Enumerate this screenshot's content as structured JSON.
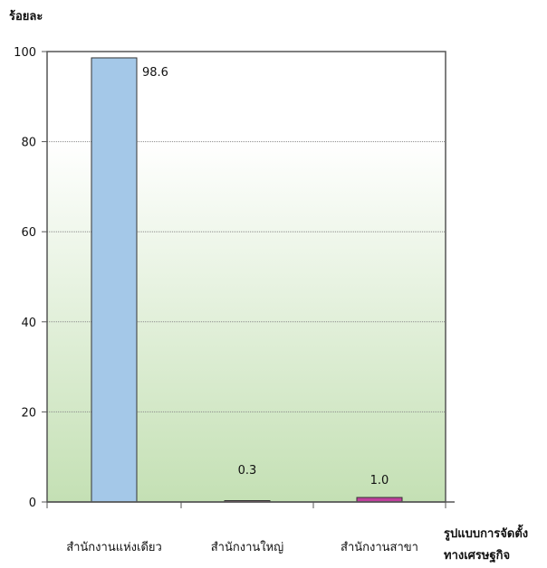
{
  "chart_data": {
    "type": "bar",
    "ylabel": "ร้อยละ",
    "xlabel": [
      "รูปแบบการจัดตั้ง",
      "ทางเศรษฐกิจ"
    ],
    "categories": [
      "สำนักงานแห่งเดียว",
      "สำนักงานใหญ่",
      "สำนักงานสาขา"
    ],
    "values": [
      98.6,
      0.3,
      1.0
    ],
    "value_labels": [
      "98.6",
      "0.3",
      "1.0"
    ],
    "bar_colors": [
      "#a4c8e8",
      "#c8608c",
      "#c0409c"
    ],
    "ylim": [
      0,
      100
    ],
    "yticks": [
      0,
      20,
      40,
      60,
      80,
      100
    ],
    "grid": true,
    "background_gradient": [
      "#ffffff",
      "#c4e0b4"
    ]
  }
}
